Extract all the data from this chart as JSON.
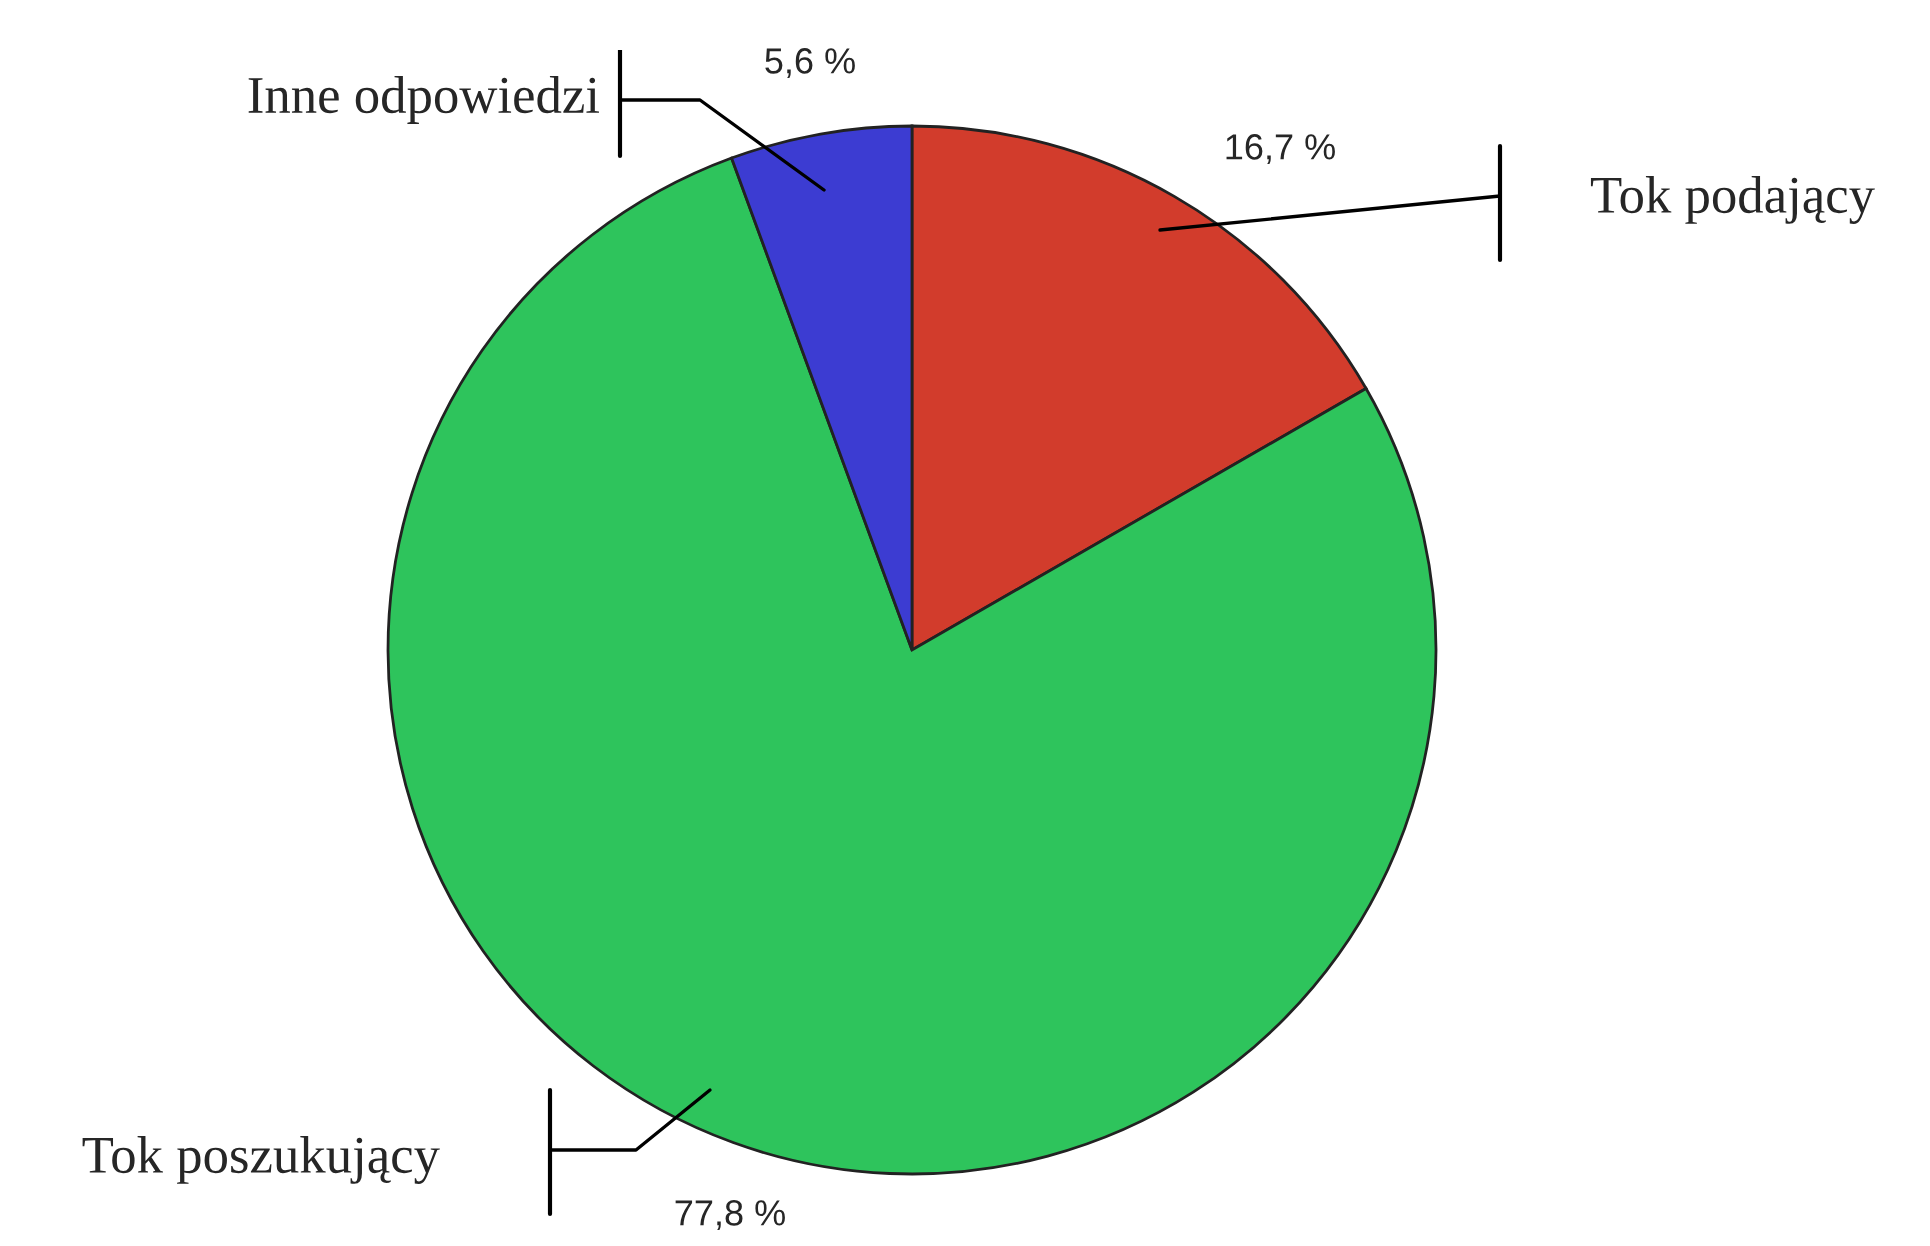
{
  "chart_data": {
    "type": "pie",
    "categories": [
      "Tok podający",
      "Tok poszukujący",
      "Inne odpowiedzi"
    ],
    "values": [
      16.7,
      77.8,
      5.6
    ],
    "value_labels": [
      "16,7 %",
      "77,8 %",
      "5,6 %"
    ],
    "colors": [
      "#d23c2c",
      "#2ec45c",
      "#3c3cd2"
    ]
  }
}
